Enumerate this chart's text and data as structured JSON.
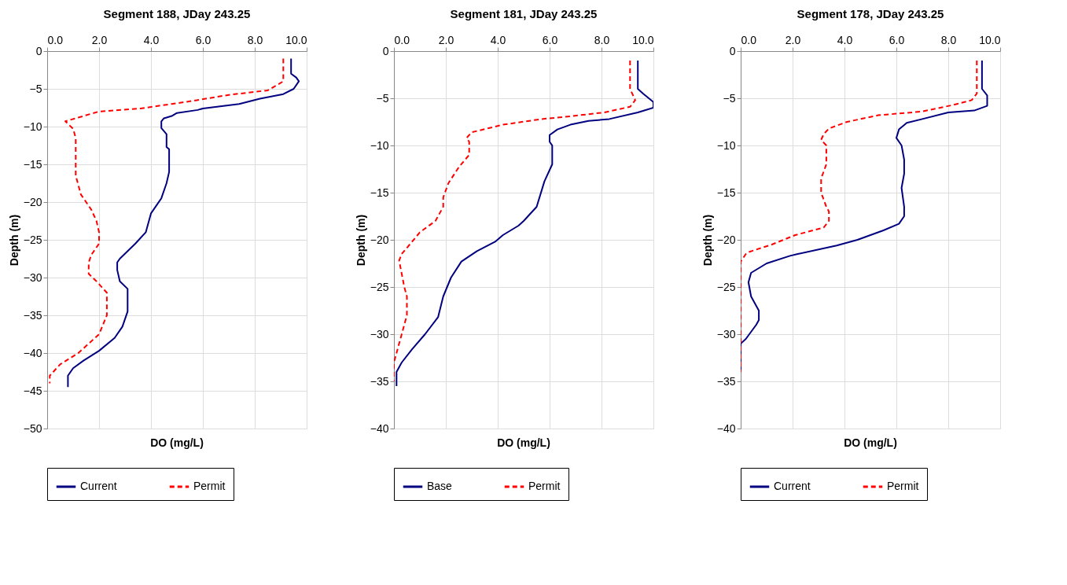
{
  "chart_data": [
    {
      "type": "line",
      "title": "Segment 188, JDay 243.25",
      "xlabel": "DO (mg/L)",
      "ylabel": "Depth (m)",
      "xlim": [
        0,
        10
      ],
      "xticks": [
        {
          "value": 0,
          "label": "0.0"
        },
        {
          "value": 2,
          "label": "2.0"
        },
        {
          "value": 4,
          "label": "4.0"
        },
        {
          "value": 6,
          "label": "6.0"
        },
        {
          "value": 8,
          "label": "8.0"
        },
        {
          "value": 10,
          "label": "10.0"
        }
      ],
      "ylim": [
        -50,
        0
      ],
      "yticks": [
        -50,
        -45,
        -40,
        -35,
        -30,
        -25,
        -20,
        -15,
        -10,
        -5,
        0
      ],
      "grid": true,
      "legend": "bottom",
      "series": [
        {
          "name": "Current",
          "color": "#000080",
          "line_style": "solid",
          "x": [
            9.4,
            9.4,
            9.6,
            9.7,
            9.5,
            9.1,
            8.2,
            7.4,
            6.0,
            5.8,
            5.0,
            4.8,
            4.5,
            4.4,
            4.4,
            4.6,
            4.6,
            4.7,
            4.7,
            4.7,
            4.6,
            4.4,
            4.1,
            4.0,
            3.8,
            3.4,
            2.8,
            2.7,
            2.7,
            2.8,
            3.1,
            3.1,
            2.9,
            2.6,
            2.0,
            1.4,
            1.0,
            0.8,
            0.8
          ],
          "values": [
            -1,
            -3,
            -3.5,
            -4,
            -5,
            -5.7,
            -6.3,
            -7,
            -7.6,
            -7.8,
            -8.2,
            -8.6,
            -8.9,
            -9.3,
            -10.2,
            -11,
            -12.7,
            -13,
            -14.5,
            -16,
            -17.5,
            -19.5,
            -21,
            -21.5,
            -24,
            -25.5,
            -27.5,
            -28,
            -29,
            -30.5,
            -31.5,
            -34.5,
            -36.5,
            -38,
            -39.7,
            -41,
            -42,
            -43,
            -44.5
          ]
        },
        {
          "name": "Permit",
          "color": "#ff0000",
          "line_style": "dashed",
          "x": [
            9.1,
            9.1,
            8.5,
            7.0,
            5.6,
            4.8,
            3.6,
            2.0,
            1.2,
            0.7,
            1.0,
            1.1,
            1.1,
            1.3,
            1.7,
            1.9,
            2.0,
            2.0,
            1.7,
            1.6,
            1.6,
            1.9,
            2.3,
            2.3,
            2.0,
            1.2,
            0.5,
            0.1,
            0.1
          ],
          "values": [
            -1,
            -4,
            -5.2,
            -5.8,
            -6.6,
            -7,
            -7.6,
            -8,
            -8.8,
            -9.3,
            -10.3,
            -11.5,
            -16.5,
            -19,
            -21,
            -22.5,
            -24,
            -25.5,
            -27,
            -28,
            -29.5,
            -30.5,
            -32,
            -35,
            -37.5,
            -40,
            -41.5,
            -43,
            -44
          ]
        }
      ]
    },
    {
      "type": "line",
      "title": "Segment 181, JDay 243.25",
      "xlabel": "DO (mg/L)",
      "ylabel": "Depth (m)",
      "xlim": [
        0,
        10
      ],
      "xticks": [
        {
          "value": 0,
          "label": "0.0"
        },
        {
          "value": 2,
          "label": "2.0"
        },
        {
          "value": 4,
          "label": "4.0"
        },
        {
          "value": 6,
          "label": "6.0"
        },
        {
          "value": 8,
          "label": "8.0"
        },
        {
          "value": 10,
          "label": "10.0"
        }
      ],
      "ylim": [
        -40,
        0
      ],
      "yticks": [
        -40,
        -35,
        -30,
        -25,
        -20,
        -15,
        -10,
        -5,
        0
      ],
      "grid": true,
      "legend": "bottom",
      "series": [
        {
          "name": "Base",
          "color": "#000080",
          "line_style": "solid",
          "x": [
            9.4,
            9.4,
            9.6,
            10.0,
            10.0,
            9.4,
            8.3,
            7.5,
            6.8,
            6.3,
            6.0,
            6.0,
            6.1,
            6.1,
            5.8,
            5.5,
            5.0,
            4.8,
            4.2,
            3.9,
            3.2,
            2.6,
            2.2,
            1.9,
            1.7,
            1.2,
            0.7,
            0.3,
            0.1,
            0.1
          ],
          "values": [
            -1,
            -4,
            -4.5,
            -5.4,
            -6,
            -6.5,
            -7.2,
            -7.4,
            -7.8,
            -8.3,
            -8.9,
            -9.6,
            -10,
            -12,
            -13.8,
            -16.5,
            -18,
            -18.5,
            -19.5,
            -20.2,
            -21.2,
            -22.3,
            -24,
            -26,
            -28.2,
            -30,
            -31.6,
            -33,
            -34,
            -35.5
          ]
        },
        {
          "name": "Permit",
          "color": "#ff0000",
          "line_style": "dashed",
          "x": [
            9.1,
            9.1,
            9.3,
            9.1,
            8.1,
            6.5,
            5.7,
            4.2,
            3.0,
            2.8,
            2.9,
            2.9,
            2.5,
            2.1,
            1.9,
            1.9,
            1.6,
            1.0,
            0.7,
            0.3,
            0.2,
            0.4,
            0.5,
            0.5,
            0.3,
            0.1,
            0.0,
            0.0
          ],
          "values": [
            -1,
            -4,
            -5.2,
            -5.9,
            -6.5,
            -7,
            -7.2,
            -7.8,
            -8.6,
            -9.2,
            -9.6,
            -11,
            -12.3,
            -14,
            -15.5,
            -16.5,
            -18,
            -19.2,
            -20.2,
            -21.5,
            -22.2,
            -25,
            -26,
            -28,
            -30,
            -32,
            -33,
            -35
          ]
        }
      ]
    },
    {
      "type": "line",
      "title": "Segment 178, JDay 243.25",
      "xlabel": "DO (mg/L)",
      "ylabel": "Depth (m)",
      "xlim": [
        0,
        10
      ],
      "xticks": [
        {
          "value": 0,
          "label": "0.0"
        },
        {
          "value": 2,
          "label": "2.0"
        },
        {
          "value": 4,
          "label": "4.0"
        },
        {
          "value": 6,
          "label": "6.0"
        },
        {
          "value": 8,
          "label": "8.0"
        },
        {
          "value": 10,
          "label": "10.0"
        }
      ],
      "ylim": [
        -40,
        0
      ],
      "yticks": [
        -40,
        -35,
        -30,
        -25,
        -20,
        -15,
        -10,
        -5,
        0
      ],
      "grid": true,
      "legend": "bottom",
      "series": [
        {
          "name": "Current",
          "color": "#000080",
          "line_style": "solid",
          "x": [
            9.3,
            9.3,
            9.5,
            9.5,
            9.0,
            8.0,
            7.0,
            6.4,
            6.1,
            6.0,
            6.2,
            6.3,
            6.3,
            6.2,
            6.3,
            6.3,
            6.1,
            5.5,
            4.5,
            3.7,
            2.2,
            1.9,
            1.0,
            0.4,
            0.3,
            0.4,
            0.7,
            0.7,
            0.6,
            0.2,
            0.0,
            0.0
          ],
          "values": [
            -1,
            -4,
            -4.7,
            -5.8,
            -6.3,
            -6.5,
            -7.2,
            -7.6,
            -8.3,
            -9.2,
            -10,
            -11.5,
            -13,
            -14.5,
            -16.5,
            -17.5,
            -18.3,
            -19,
            -20,
            -20.6,
            -21.5,
            -21.7,
            -22.5,
            -23.5,
            -24.5,
            -26,
            -27.5,
            -28.5,
            -29,
            -30.5,
            -31,
            -34
          ]
        },
        {
          "name": "Permit",
          "color": "#ff0000",
          "line_style": "dashed",
          "x": [
            9.1,
            9.1,
            8.9,
            8.2,
            7.0,
            5.3,
            4.1,
            3.4,
            3.2,
            3.1,
            3.3,
            3.3,
            3.1,
            3.1,
            3.3,
            3.4,
            3.4,
            3.2,
            2.1,
            1.2,
            0.3,
            0.2,
            0.0,
            0.0
          ],
          "values": [
            -1,
            -4.5,
            -5.2,
            -5.7,
            -6.4,
            -6.8,
            -7.5,
            -8.2,
            -8.8,
            -9.4,
            -10,
            -12,
            -13.5,
            -15,
            -16.5,
            -17,
            -18,
            -18.7,
            -19.5,
            -20.5,
            -21.3,
            -21.5,
            -22.3,
            -34
          ]
        }
      ]
    }
  ]
}
